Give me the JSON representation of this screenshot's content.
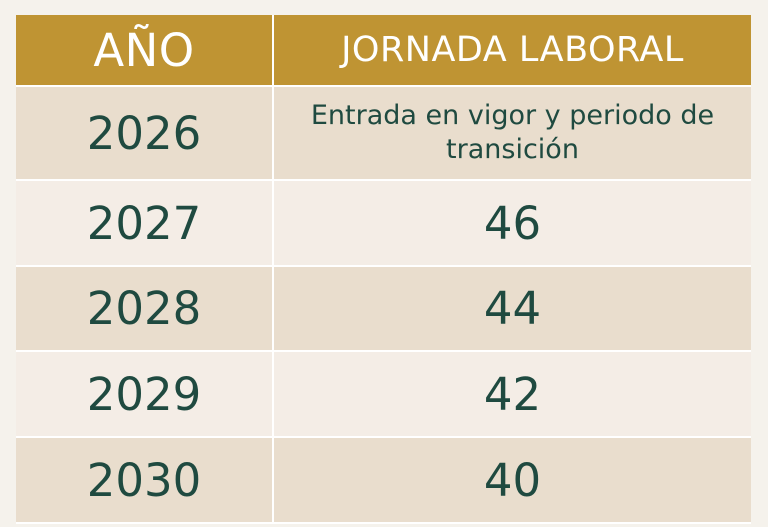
{
  "headers": {
    "year": "AÑO",
    "workday": "JORNADA LABORAL"
  },
  "rows": [
    {
      "year": "2026",
      "value": "Entrada en vigor y periodo de transición"
    },
    {
      "year": "2027",
      "value": "46"
    },
    {
      "year": "2028",
      "value": "44"
    },
    {
      "year": "2029",
      "value": "42"
    },
    {
      "year": "2030",
      "value": "40"
    }
  ],
  "colors": {
    "header_bg": "#bf9433",
    "header_text": "#ffffff",
    "row_dark": "#e9ddcd",
    "row_light": "#f4ede6",
    "body_text": "#1f4a40"
  }
}
